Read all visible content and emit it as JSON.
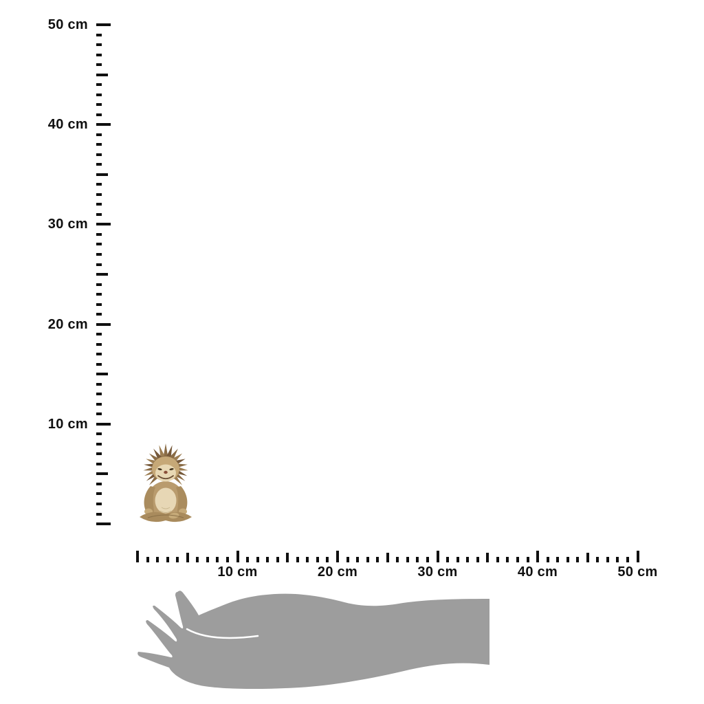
{
  "image": {
    "type": "product-size-guide",
    "background": "#ffffff"
  },
  "vertical_ruler": {
    "orientation": "vertical",
    "unit": "cm",
    "min_cm": 0,
    "max_cm": 50,
    "minor_step_cm": 1,
    "semi_step_cm": 5,
    "label_step_cm": 10,
    "labels": [
      {
        "value_cm": 50,
        "text": "50 cm"
      },
      {
        "value_cm": 40,
        "text": "40 cm"
      },
      {
        "value_cm": 30,
        "text": "30 cm"
      },
      {
        "value_cm": 20,
        "text": "20 cm"
      },
      {
        "value_cm": 10,
        "text": "10 cm"
      }
    ]
  },
  "horizontal_ruler": {
    "orientation": "horizontal",
    "unit": "cm",
    "min_cm": 0,
    "max_cm": 50,
    "minor_step_cm": 1,
    "semi_step_cm": 5,
    "label_step_cm": 10,
    "labels": [
      {
        "value_cm": 10,
        "text": "10 cm"
      },
      {
        "value_cm": 20,
        "text": "20 cm"
      },
      {
        "value_cm": 30,
        "text": "30 cm"
      },
      {
        "value_cm": 40,
        "text": "40 cm"
      },
      {
        "value_cm": 50,
        "text": "50 cm"
      }
    ]
  },
  "figures": {
    "product": {
      "name": "meditating-hedgehog-figurine",
      "approx_height_cm": 8.5
    },
    "scale_reference": {
      "name": "human-hand-silhouette"
    }
  },
  "colors": {
    "tick": "#101010",
    "label_text": "#101010",
    "hand_silhouette": "#9d9d9d",
    "hedgehog_spikes": "#8a6c46",
    "hedgehog_spikes_dark": "#76593a",
    "hedgehog_spikes_light": "#9c7d52",
    "hedgehog_fur": "#c6a877",
    "hedgehog_body": "#b99b6d",
    "hedgehog_belly": "#e7d7b5",
    "hedgehog_face": "#e8d8b4",
    "hedgehog_arms": "#aa8c5e",
    "hedgehog_legs": "#a98b5d",
    "hedgehog_paws": "#c6aa79",
    "hedgehog_nose": "#8a4f38",
    "hedgehog_eyes": "#43341f",
    "hedgehog_mouth": "#6b4e33"
  }
}
